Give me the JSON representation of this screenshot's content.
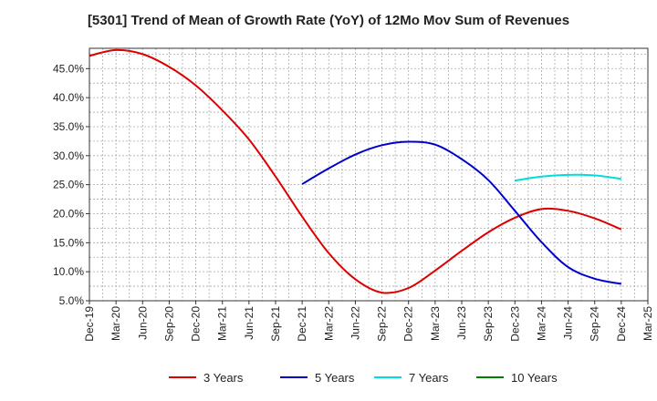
{
  "chart_data": {
    "type": "line",
    "title": "[5301]  Trend of Mean of Growth Rate (YoY) of 12Mo Mov Sum of Revenues",
    "xlabel": "",
    "ylabel": "",
    "x_ticks": [
      "Dec-19",
      "Mar-20",
      "Jun-20",
      "Sep-20",
      "Dec-20",
      "Mar-21",
      "Jun-21",
      "Sep-21",
      "Dec-21",
      "Mar-22",
      "Jun-22",
      "Sep-22",
      "Dec-22",
      "Mar-23",
      "Jun-23",
      "Sep-23",
      "Dec-23",
      "Mar-24",
      "Jun-24",
      "Sep-24",
      "Dec-24",
      "Mar-25"
    ],
    "y_ticks": [
      "5.0%",
      "10.0%",
      "15.0%",
      "20.0%",
      "25.0%",
      "30.0%",
      "35.0%",
      "40.0%",
      "45.0%"
    ],
    "ylim": [
      5,
      48.5
    ],
    "grid": true,
    "legend_position": "bottom",
    "series": [
      {
        "name": "3 Years",
        "color": "#dd0000",
        "values": [
          47.2,
          48.2,
          47.5,
          45.3,
          42.1,
          37.8,
          32.8,
          26.4,
          19.5,
          13.2,
          8.7,
          6.4,
          7.2,
          10.2,
          13.6,
          16.8,
          19.3,
          20.8,
          20.5,
          19.2,
          17.3,
          null
        ]
      },
      {
        "name": "5 Years",
        "color": "#0000cc",
        "values": [
          null,
          null,
          null,
          null,
          null,
          null,
          null,
          null,
          25.1,
          27.8,
          30.2,
          31.8,
          32.4,
          31.9,
          29.4,
          25.8,
          20.5,
          15.1,
          10.8,
          8.8,
          7.9,
          null
        ]
      },
      {
        "name": "7 Years",
        "color": "#00dddd",
        "values": [
          null,
          null,
          null,
          null,
          null,
          null,
          null,
          null,
          null,
          null,
          null,
          null,
          null,
          null,
          null,
          null,
          25.7,
          26.4,
          26.7,
          26.6,
          26.0,
          null
        ]
      },
      {
        "name": "10 Years",
        "color": "#008000",
        "values": [
          null,
          null,
          null,
          null,
          null,
          null,
          null,
          null,
          null,
          null,
          null,
          null,
          null,
          null,
          null,
          null,
          null,
          null,
          null,
          null,
          null,
          null
        ]
      }
    ]
  }
}
